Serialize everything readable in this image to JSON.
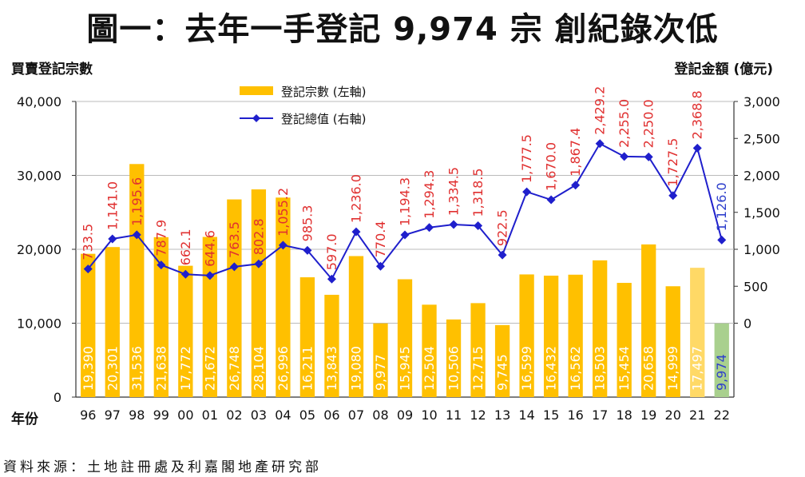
{
  "title": "圖一：去年一手登記 9,974 宗  創紀錄次低",
  "source": "資料來源：土地註冊處及利嘉閣地產研究部",
  "chart_data": {
    "type": "bar+line",
    "left_axis_label": "買賣登記宗數",
    "right_axis_label": "登記金額 (億元)",
    "xlabel": "年份",
    "categories": [
      "96",
      "97",
      "98",
      "99",
      "00",
      "01",
      "02",
      "03",
      "04",
      "05",
      "06",
      "07",
      "08",
      "09",
      "10",
      "11",
      "12",
      "13",
      "14",
      "15",
      "16",
      "17",
      "18",
      "19",
      "20",
      "21",
      "22"
    ],
    "left_ylim": [
      0,
      40000
    ],
    "left_ticks": [
      0,
      10000,
      20000,
      30000,
      40000
    ],
    "left_tick_labels": [
      "0",
      "10,000",
      "20,000",
      "30,000",
      "40,000"
    ],
    "right_ylim": [
      -1000,
      3000
    ],
    "right_ticks": [
      0,
      500,
      1000,
      1500,
      2000,
      2500,
      3000
    ],
    "right_tick_labels": [
      "0",
      "500",
      "1,000",
      "1,500",
      "2,000",
      "2,500",
      "3,000"
    ],
    "series": [
      {
        "name": "登記宗數 (左軸)",
        "type": "bar",
        "axis": "left",
        "values": [
          19390,
          20301,
          31536,
          21638,
          17772,
          21672,
          26748,
          28104,
          26996,
          16211,
          13843,
          19080,
          9977,
          15945,
          12504,
          10506,
          12715,
          9745,
          16599,
          16432,
          16562,
          18503,
          15454,
          20658,
          14999,
          17497,
          9974
        ],
        "labels": [
          "19,390",
          "20,301",
          "31,536",
          "21,638",
          "17,772",
          "21,672",
          "26,748",
          "28,104",
          "26,996",
          "16,211",
          "13,843",
          "19,080",
          "9,977",
          "15,945",
          "12,504",
          "10,506",
          "12,715",
          "9,745",
          "16,599",
          "16,432",
          "16,562",
          "18,503",
          "15,454",
          "20,658",
          "14,999",
          "17,497",
          "9,974"
        ]
      },
      {
        "name": "登記總值 (右軸)",
        "type": "line",
        "axis": "right",
        "values": [
          733.5,
          1141.0,
          1195.6,
          787.9,
          662.1,
          644.6,
          763.5,
          802.8,
          1055.2,
          985.3,
          597.0,
          1236.0,
          770.4,
          1194.3,
          1294.3,
          1334.5,
          1318.5,
          922.5,
          1777.5,
          1670.0,
          1867.4,
          2429.2,
          2255.0,
          2250.0,
          1727.5,
          2368.8,
          1126.0
        ],
        "labels": [
          "733.5",
          "1,141.0",
          "1,195.6",
          "787.9",
          "662.1",
          "644.6",
          "763.5",
          "802.8",
          "1,055.2",
          "985.3",
          "597.0",
          "1,236.0",
          "770.4",
          "1,194.3",
          "1,294.3",
          "1,334.5",
          "1,318.5",
          "922.5",
          "1,777.5",
          "1,670.0",
          "1,867.4",
          "2,429.2",
          "2,255.0",
          "2,250.0",
          "1,727.5",
          "2,368.8",
          "1,126.0"
        ]
      }
    ],
    "colors": {
      "bar": "#FFC000",
      "bar_21": "#FFD966",
      "bar_22": "#A9D08E",
      "line": "#1F1FCC",
      "value_label": "#E03030",
      "last_value_label": "#2E3FCC",
      "bar_label": "#FFFFFF",
      "last_bar_label": "#2E3FCC"
    }
  }
}
